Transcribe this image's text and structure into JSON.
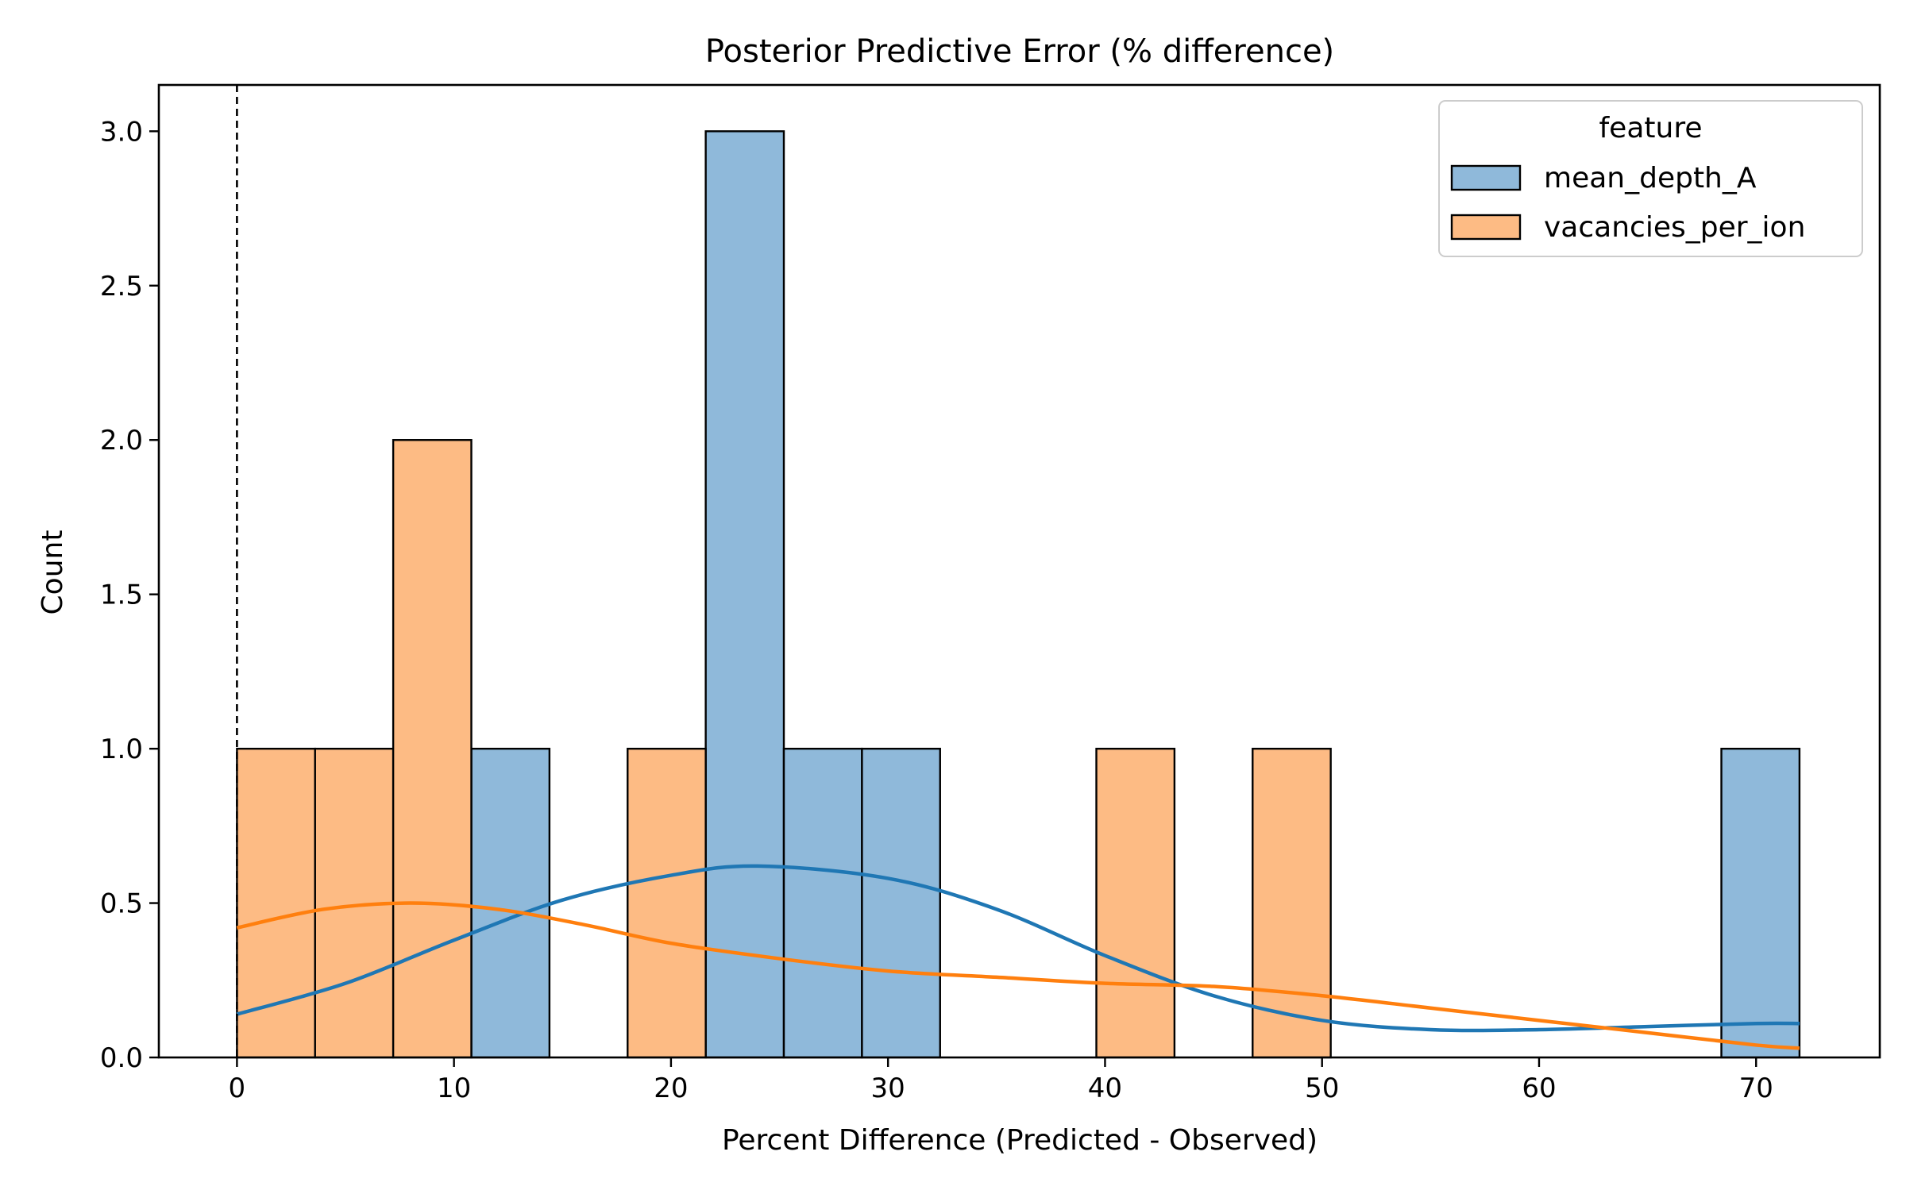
{
  "chart_data": {
    "type": "bar",
    "title": "Posterior Predictive Error (% difference)",
    "xlabel": "Percent Difference (Predicted - Observed)",
    "ylabel": "Count",
    "xlim": [
      -3.6,
      75.7
    ],
    "ylim": [
      0,
      3.15
    ],
    "xticks": [
      0,
      10,
      20,
      30,
      40,
      50,
      60,
      70
    ],
    "yticks": [
      0.0,
      0.5,
      1.0,
      1.5,
      2.0,
      2.5,
      3.0
    ],
    "grid": false,
    "reference_line": {
      "x": 0,
      "style": "dashed"
    },
    "legend": {
      "title": "feature",
      "placement": "top-right"
    },
    "bin_edges": [
      0.0,
      3.6,
      7.2,
      10.8,
      14.4,
      18.0,
      21.6,
      25.2,
      28.8,
      32.4,
      36.0,
      39.6,
      43.2,
      46.8,
      50.4,
      54.0,
      57.6,
      61.2,
      64.8,
      68.4,
      72.0
    ],
    "series": [
      {
        "name": "mean_depth_A",
        "color": "#8fb9da",
        "line_color": "#1f77b4",
        "values": [
          0,
          0,
          0,
          1,
          0,
          0,
          3,
          1,
          1,
          0,
          0,
          0,
          0,
          0,
          0,
          0,
          0,
          0,
          0,
          1
        ],
        "kde": {
          "x": [
            0,
            5,
            10,
            15,
            20,
            24,
            30,
            35,
            40,
            45,
            50,
            55,
            60,
            65,
            70,
            72
          ],
          "y": [
            0.14,
            0.24,
            0.38,
            0.51,
            0.59,
            0.62,
            0.58,
            0.48,
            0.33,
            0.2,
            0.12,
            0.09,
            0.09,
            0.1,
            0.11,
            0.11
          ]
        }
      },
      {
        "name": "vacancies_per_ion",
        "color": "#fdbb84",
        "line_color": "#ff7f0e",
        "values": [
          1,
          1,
          2,
          0,
          0,
          1,
          0,
          0,
          0,
          0,
          0,
          1,
          0,
          1,
          0,
          0,
          0,
          0,
          0,
          0
        ],
        "kde": {
          "x": [
            0,
            4,
            8,
            12,
            16,
            20,
            25,
            30,
            35,
            40,
            45,
            50,
            55,
            60,
            65,
            70,
            72
          ],
          "y": [
            0.42,
            0.48,
            0.5,
            0.48,
            0.43,
            0.37,
            0.32,
            0.28,
            0.26,
            0.24,
            0.23,
            0.2,
            0.16,
            0.12,
            0.08,
            0.04,
            0.03
          ]
        }
      }
    ]
  }
}
